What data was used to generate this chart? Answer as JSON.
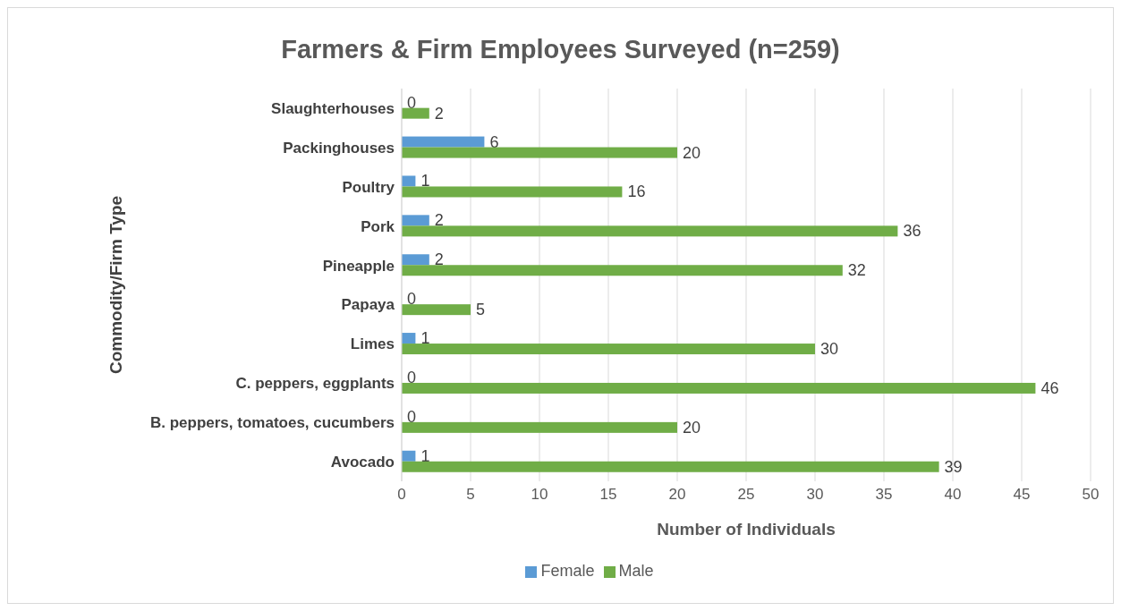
{
  "chart_data": {
    "type": "bar",
    "orientation": "horizontal",
    "title": "Farmers & Firm Employees Surveyed (n=259)",
    "xlabel": "Number of Individuals",
    "ylabel": "Commodity/Firm Type",
    "categories": [
      "Slaughterhouses",
      "Packinghouses",
      "Poultry",
      "Pork",
      "Pineapple",
      "Papaya",
      "Limes",
      "C. peppers, eggplants",
      "B. peppers, tomatoes, cucumbers",
      "Avocado"
    ],
    "series": [
      {
        "name": "Female",
        "color": "#5b9bd5",
        "values": [
          0,
          6,
          1,
          2,
          2,
          0,
          1,
          0,
          0,
          1
        ]
      },
      {
        "name": "Male",
        "color": "#70ad47",
        "values": [
          2,
          20,
          16,
          36,
          32,
          5,
          30,
          46,
          20,
          39
        ]
      }
    ],
    "xlim": [
      0,
      50
    ],
    "xticks": [
      0,
      5,
      10,
      15,
      20,
      25,
      30,
      35,
      40,
      45,
      50
    ],
    "grid": "x",
    "legend": "bottom",
    "data_labels": true
  }
}
